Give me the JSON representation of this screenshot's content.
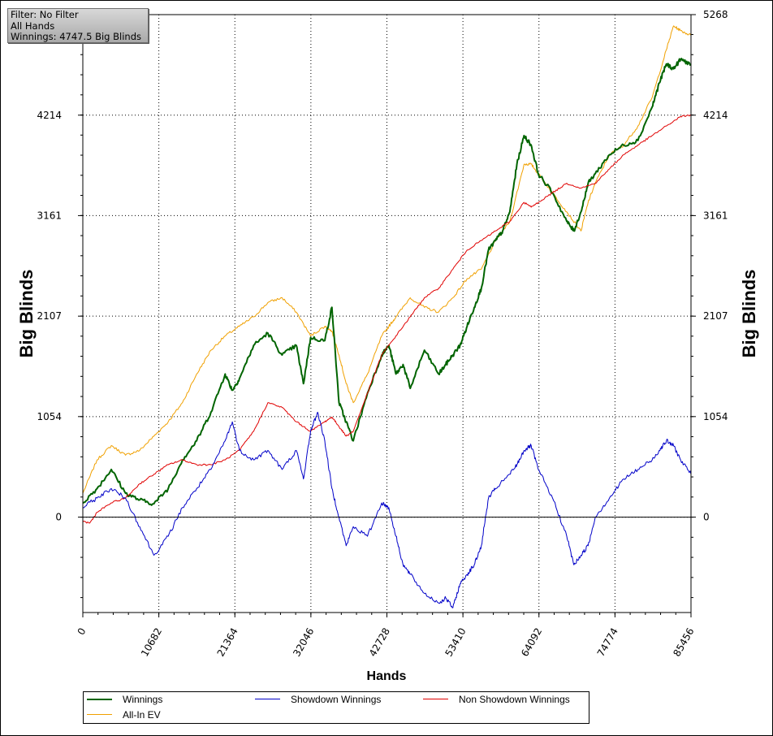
{
  "info": {
    "filter": "Filter: No Filter",
    "hands": "All Hands",
    "winnings": "Winnings: 4747.5 Big Blinds"
  },
  "chart_data": {
    "type": "line",
    "xlabel": "Hands",
    "ylabel": "Big Blinds",
    "xlim": [
      0,
      85456
    ],
    "ylim": [
      -1000,
      5268
    ],
    "x_ticks": [
      0,
      10682,
      21364,
      32046,
      42728,
      53410,
      64092,
      74774,
      85456
    ],
    "y_ticks": [
      0,
      1054,
      2107,
      3161,
      4214,
      5268
    ],
    "grid": true,
    "legend_position": "bottom",
    "series": [
      {
        "name": "Winnings",
        "color": "#006400",
        "x": [
          0,
          2000,
          4000,
          6000,
          8000,
          10000,
          12000,
          14000,
          16000,
          18000,
          20000,
          21000,
          22000,
          24000,
          26000,
          28000,
          30000,
          31000,
          32000,
          34000,
          35000,
          36000,
          37000,
          38000,
          40000,
          42000,
          43000,
          44000,
          45000,
          46000,
          48000,
          50000,
          51000,
          52000,
          53000,
          54000,
          55000,
          56000,
          57000,
          58000,
          59000,
          60000,
          61000,
          62000,
          63000,
          64000,
          66000,
          68000,
          69000,
          70000,
          71000,
          72000,
          74000,
          76000,
          78000,
          80000,
          81000,
          82000,
          83000,
          84000,
          85456
        ],
        "y": [
          150,
          300,
          500,
          250,
          180,
          140,
          300,
          600,
          800,
          1100,
          1500,
          1330,
          1450,
          1800,
          1930,
          1700,
          1800,
          1400,
          1880,
          1850,
          2200,
          1200,
          1000,
          800,
          1300,
          1700,
          1800,
          1500,
          1600,
          1350,
          1750,
          1500,
          1600,
          1700,
          1800,
          2000,
          2200,
          2400,
          2800,
          2900,
          3000,
          3200,
          3700,
          4000,
          3900,
          3600,
          3400,
          3100,
          3000,
          3200,
          3500,
          3600,
          3800,
          3900,
          3950,
          4300,
          4550,
          4750,
          4700,
          4800,
          4747.5
        ]
      },
      {
        "name": "All-In EV",
        "color": "#f0a000",
        "x": [
          0,
          2000,
          4000,
          6000,
          8000,
          10000,
          12000,
          14000,
          16000,
          18000,
          20000,
          22000,
          24000,
          26000,
          28000,
          30000,
          32000,
          34000,
          35000,
          36000,
          37000,
          38000,
          40000,
          42000,
          43000,
          44000,
          46000,
          48000,
          50000,
          52000,
          54000,
          56000,
          58000,
          60000,
          62000,
          63000,
          64000,
          66000,
          68000,
          70000,
          71000,
          72000,
          74000,
          76000,
          78000,
          80000,
          82000,
          83000,
          84000,
          85456
        ],
        "y": [
          250,
          600,
          750,
          650,
          700,
          850,
          1000,
          1200,
          1500,
          1750,
          1900,
          2000,
          2100,
          2250,
          2300,
          2150,
          1900,
          2000,
          1950,
          1700,
          1400,
          1200,
          1500,
          1900,
          2000,
          2100,
          2300,
          2200,
          2150,
          2300,
          2500,
          2600,
          2900,
          3100,
          3700,
          3700,
          3600,
          3400,
          3200,
          3000,
          3300,
          3500,
          3800,
          3900,
          4100,
          4400,
          4900,
          5150,
          5100,
          5050
        ]
      },
      {
        "name": "Showdown Winnings",
        "color": "#0000c8",
        "x": [
          0,
          2000,
          4000,
          6000,
          8000,
          10000,
          12000,
          14000,
          16000,
          18000,
          20000,
          21000,
          22000,
          24000,
          26000,
          28000,
          30000,
          31000,
          32000,
          33000,
          34000,
          35000,
          36000,
          37000,
          38000,
          40000,
          42000,
          43000,
          44000,
          45000,
          46000,
          48000,
          50000,
          51000,
          52000,
          53000,
          54000,
          55000,
          56000,
          57000,
          58000,
          60000,
          61000,
          62000,
          63000,
          64000,
          66000,
          68000,
          69000,
          70000,
          71000,
          72000,
          74000,
          76000,
          78000,
          80000,
          81000,
          82000,
          83000,
          84000,
          85456
        ],
        "y": [
          100,
          200,
          300,
          200,
          -100,
          -400,
          -200,
          100,
          300,
          500,
          800,
          1000,
          700,
          600,
          700,
          500,
          700,
          400,
          900,
          1100,
          800,
          300,
          0,
          -300,
          -100,
          -200,
          150,
          100,
          -200,
          -500,
          -600,
          -800,
          -900,
          -850,
          -950,
          -700,
          -600,
          -500,
          -300,
          200,
          300,
          450,
          550,
          700,
          750,
          500,
          200,
          -200,
          -500,
          -400,
          -300,
          0,
          200,
          400,
          500,
          600,
          700,
          800,
          750,
          600,
          450
        ]
      },
      {
        "name": "Non Showdown Winnings",
        "color": "#e00000",
        "x": [
          0,
          1000,
          2000,
          4000,
          6000,
          8000,
          10000,
          12000,
          14000,
          16000,
          18000,
          20000,
          22000,
          24000,
          26000,
          28000,
          30000,
          32000,
          34000,
          35000,
          36000,
          37000,
          38000,
          40000,
          42000,
          44000,
          46000,
          48000,
          50000,
          52000,
          54000,
          56000,
          58000,
          60000,
          62000,
          63000,
          64000,
          66000,
          68000,
          70000,
          72000,
          74000,
          76000,
          78000,
          80000,
          82000,
          84000,
          85456
        ],
        "y": [
          -50,
          -60,
          50,
          150,
          200,
          350,
          450,
          550,
          600,
          550,
          550,
          600,
          700,
          900,
          1200,
          1150,
          1000,
          900,
          1000,
          1050,
          950,
          850,
          900,
          1300,
          1700,
          1900,
          2100,
          2300,
          2400,
          2600,
          2800,
          2900,
          3000,
          3100,
          3300,
          3250,
          3300,
          3400,
          3500,
          3450,
          3500,
          3650,
          3800,
          3900,
          4000,
          4100,
          4200,
          4214
        ]
      }
    ]
  }
}
